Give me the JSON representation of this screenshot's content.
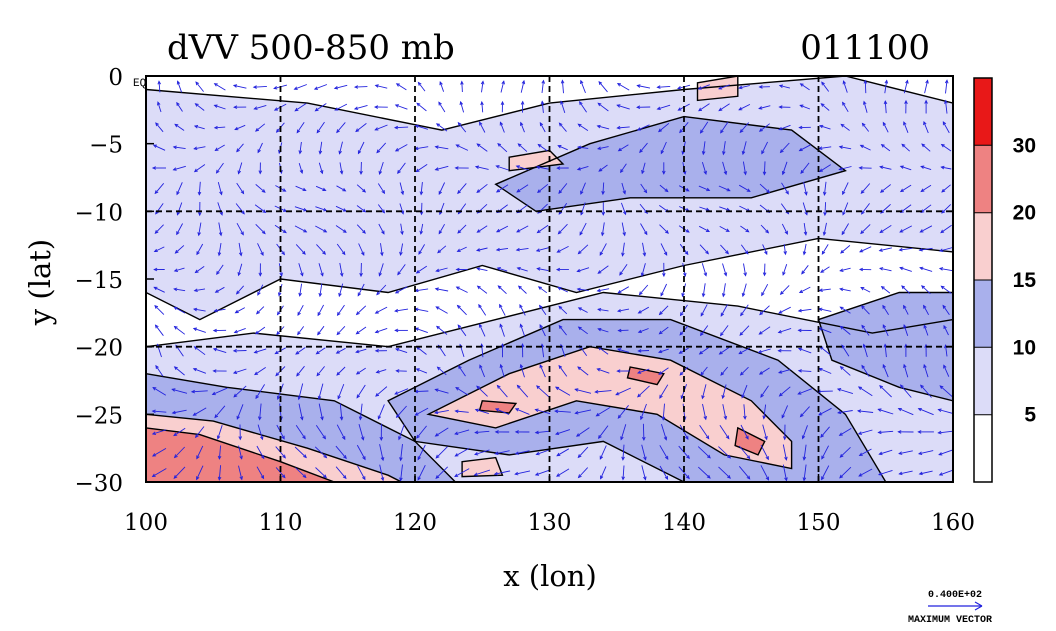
{
  "chart_data": {
    "type": "heatmap",
    "title": "dVV 500-850 mb",
    "date_label": "011100",
    "xlabel": "x (lon)",
    "ylabel": "y (lat)",
    "xlim": [
      100,
      160
    ],
    "ylim": [
      -30,
      0
    ],
    "x_ticks": [
      "100",
      "110",
      "120",
      "130",
      "140",
      "150",
      "160"
    ],
    "y_ticks": [
      "0",
      "−5",
      "−10",
      "−15",
      "−20",
      "−25",
      "−30"
    ],
    "equator_label": "EQ",
    "grid": true,
    "colorbar": {
      "levels": [
        "5",
        "10",
        "15",
        "20",
        "30"
      ],
      "colors": [
        "#ffffff",
        "#dcdcf8",
        "#a9b0ec",
        "#f9cfcf",
        "#ee8282",
        "#e81818"
      ]
    },
    "vector_reference": {
      "value": "0.400E+02",
      "caption": "MAXIMUM VECTOR",
      "color": "#2222dd"
    },
    "field_regions": [
      {
        "level": 1,
        "label": "light blue broad fill",
        "points": [
          [
            100,
            -1
          ],
          [
            112,
            -2
          ],
          [
            122,
            -4
          ],
          [
            130,
            -2
          ],
          [
            140,
            -1
          ],
          [
            152,
            0
          ],
          [
            160,
            -2
          ],
          [
            160,
            -13
          ],
          [
            150,
            -12
          ],
          [
            140,
            -14
          ],
          [
            132,
            -16
          ],
          [
            125,
            -14
          ],
          [
            118,
            -16
          ],
          [
            110,
            -15
          ],
          [
            104,
            -18
          ],
          [
            100,
            -16
          ]
        ]
      },
      {
        "level": 1,
        "label": "light blue south band",
        "points": [
          [
            100,
            -20
          ],
          [
            108,
            -19
          ],
          [
            118,
            -20
          ],
          [
            126,
            -18
          ],
          [
            134,
            -16
          ],
          [
            144,
            -17
          ],
          [
            154,
            -19
          ],
          [
            160,
            -18
          ],
          [
            160,
            -30
          ],
          [
            100,
            -30
          ]
        ]
      },
      {
        "level": 2,
        "label": "medium blue southwest",
        "points": [
          [
            100,
            -22
          ],
          [
            106,
            -23
          ],
          [
            114,
            -24
          ],
          [
            120,
            -27
          ],
          [
            123,
            -30
          ],
          [
            100,
            -30
          ]
        ]
      },
      {
        "level": 2,
        "label": "medium blue central band",
        "points": [
          [
            118,
            -24
          ],
          [
            124,
            -21
          ],
          [
            131,
            -18
          ],
          [
            139,
            -18
          ],
          [
            147,
            -21
          ],
          [
            152,
            -25
          ],
          [
            155,
            -30
          ],
          [
            140,
            -30
          ],
          [
            134,
            -27
          ],
          [
            127,
            -28
          ],
          [
            120,
            -27
          ]
        ]
      },
      {
        "level": 2,
        "label": "medium blue north strip",
        "points": [
          [
            126,
            -8
          ],
          [
            133,
            -5
          ],
          [
            140,
            -3
          ],
          [
            148,
            -4
          ],
          [
            152,
            -7
          ],
          [
            145,
            -9
          ],
          [
            136,
            -9
          ],
          [
            129,
            -10
          ]
        ]
      },
      {
        "level": 2,
        "label": "medium blue east",
        "points": [
          [
            150,
            -18
          ],
          [
            156,
            -16
          ],
          [
            160,
            -16
          ],
          [
            160,
            -24
          ],
          [
            156,
            -23
          ],
          [
            151,
            -21
          ]
        ]
      },
      {
        "level": 3,
        "label": "pink central band",
        "points": [
          [
            121,
            -25
          ],
          [
            127,
            -22
          ],
          [
            133,
            -20
          ],
          [
            139,
            -21
          ],
          [
            145,
            -24
          ],
          [
            148,
            -27
          ],
          [
            148,
            -29
          ],
          [
            143,
            -28
          ],
          [
            138,
            -25
          ],
          [
            132,
            -24
          ],
          [
            126,
            -26
          ]
        ]
      },
      {
        "level": 3,
        "label": "pink southwest",
        "points": [
          [
            100,
            -25
          ],
          [
            105,
            -25.5
          ],
          [
            112,
            -27.5
          ],
          [
            118,
            -29.5
          ],
          [
            119,
            -30
          ],
          [
            100,
            -30
          ]
        ]
      },
      {
        "level": 3,
        "label": "pink north spot",
        "points": [
          [
            127,
            -6
          ],
          [
            130,
            -5.5
          ],
          [
            131,
            -6.5
          ],
          [
            127,
            -7
          ]
        ]
      },
      {
        "level": 3,
        "label": "pink northeast",
        "points": [
          [
            141,
            -0.5
          ],
          [
            144,
            0
          ],
          [
            144,
            -1.5
          ],
          [
            141,
            -1.8
          ]
        ]
      },
      {
        "level": 3,
        "label": "pink small south",
        "points": [
          [
            123.5,
            -28.5
          ],
          [
            126,
            -28.2
          ],
          [
            126.5,
            -29.5
          ],
          [
            123.5,
            -29.6
          ]
        ]
      },
      {
        "level": 4,
        "label": "red southwest core",
        "points": [
          [
            100,
            -26
          ],
          [
            104,
            -26.5
          ],
          [
            110,
            -28.5
          ],
          [
            114,
            -30
          ],
          [
            100,
            -30
          ]
        ]
      },
      {
        "level": 4,
        "label": "red central spot",
        "points": [
          [
            136,
            -21.5
          ],
          [
            138.5,
            -22
          ],
          [
            138,
            -22.8
          ],
          [
            135.8,
            -22.3
          ]
        ]
      },
      {
        "level": 4,
        "label": "red east spot",
        "points": [
          [
            144,
            -26
          ],
          [
            146,
            -27
          ],
          [
            145.5,
            -28
          ],
          [
            143.8,
            -27.3
          ]
        ]
      },
      {
        "level": 4,
        "label": "red small spot",
        "points": [
          [
            125,
            -24
          ],
          [
            127.5,
            -24.2
          ],
          [
            127,
            -24.9
          ],
          [
            124.8,
            -24.7
          ]
        ]
      }
    ]
  }
}
